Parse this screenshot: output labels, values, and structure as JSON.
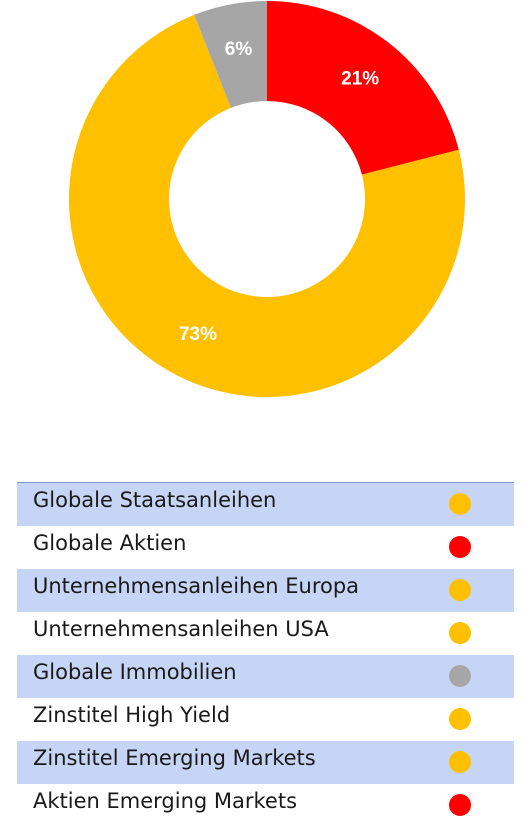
{
  "chart_data": {
    "type": "pie",
    "variant": "donut",
    "slices": [
      {
        "label": "21%",
        "value": 21,
        "color": "#ff0000"
      },
      {
        "label": "73%",
        "value": 73,
        "color": "#ffc000"
      },
      {
        "label": "6%",
        "value": 6,
        "color": "#a6a6a6"
      }
    ]
  },
  "legend": {
    "items": [
      {
        "label": "Globale Staatsanleihen",
        "color": "#ffc000"
      },
      {
        "label": "Globale Aktien",
        "color": "#ff0000"
      },
      {
        "label": "Unternehmensanleihen Europa",
        "color": "#ffc000"
      },
      {
        "label": "Unternehmensanleihen USA",
        "color": "#ffc000"
      },
      {
        "label": "Globale Immobilien",
        "color": "#a6a6a6"
      },
      {
        "label": "Zinstitel High Yield",
        "color": "#ffc000"
      },
      {
        "label": "Zinstitel Emerging Markets",
        "color": "#ffc000"
      },
      {
        "label": "Aktien Emerging Markets",
        "color": "#ff0000"
      }
    ]
  }
}
